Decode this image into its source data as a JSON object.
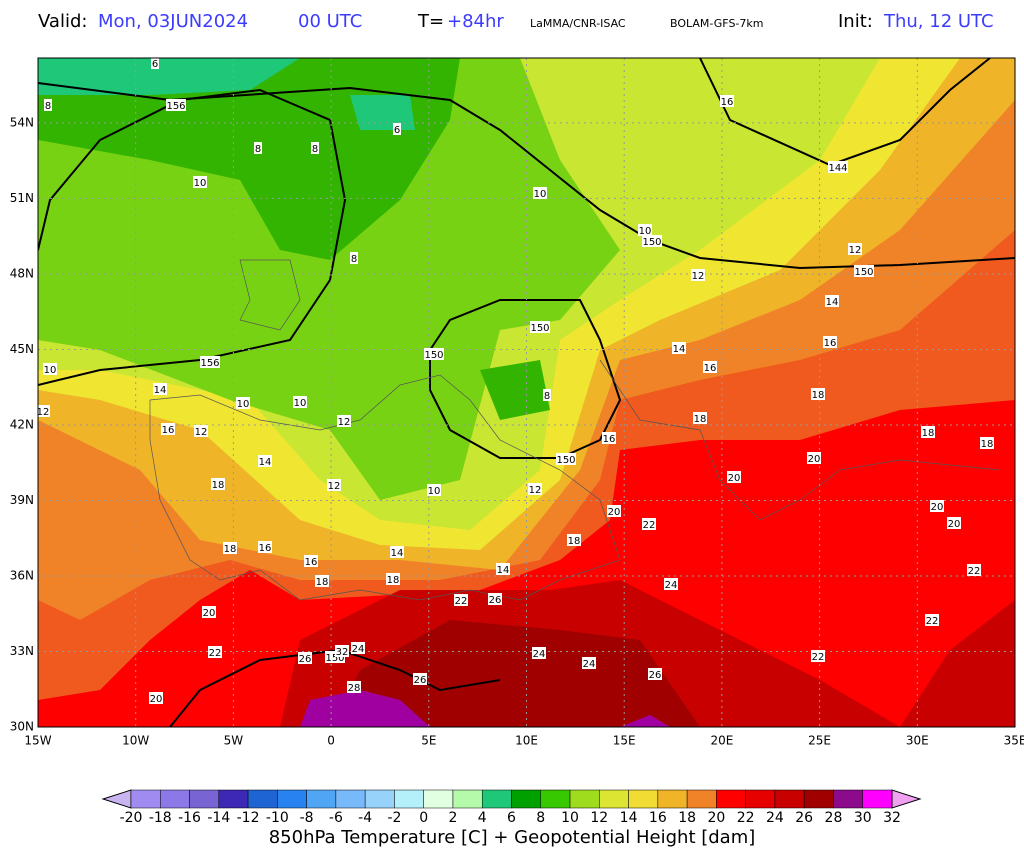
{
  "header": {
    "valid_label": "Valid:",
    "valid_date": "Mon, 03JUN2024",
    "valid_hour": "00 UTC",
    "step_label": "T=",
    "step_value": "+84hr",
    "source": "LaMMA/CNR-ISAC",
    "model": "BOLAM-GFS-7km",
    "init_label": "Init:",
    "init_value": "Thu, 12 UTC"
  },
  "map": {
    "lon_ticks": [
      {
        "value": -15,
        "label": "15W"
      },
      {
        "value": -10,
        "label": "10W"
      },
      {
        "value": -5,
        "label": "5W"
      },
      0,
      {
        "value": 5,
        "label": "5E"
      },
      {
        "value": 10,
        "label": "10E"
      },
      {
        "value": 15,
        "label": "15E"
      },
      {
        "value": 20,
        "label": "20E"
      },
      {
        "value": 25,
        "label": "25E"
      },
      {
        "value": 30,
        "label": "30E"
      },
      {
        "value": 35,
        "label": "35E"
      }
    ],
    "lat_ticks": [
      {
        "value": 30,
        "label": "30N"
      },
      {
        "value": 33,
        "label": "33N"
      },
      {
        "value": 36,
        "label": "36N"
      },
      {
        "value": 39,
        "label": "39N"
      },
      {
        "value": 42,
        "label": "42N"
      },
      {
        "value": 45,
        "label": "45N"
      },
      {
        "value": 48,
        "label": "48N"
      },
      {
        "value": 51,
        "label": "51N"
      },
      {
        "value": 54,
        "label": "54N"
      }
    ],
    "contour_labels": [
      "6",
      "8",
      "156",
      "8",
      "8",
      "6",
      "16",
      "10",
      "10",
      "144",
      "8",
      "10",
      "150",
      "12",
      "150",
      "12",
      "14",
      "150",
      "16",
      "150",
      "14",
      "16",
      "10",
      "156",
      "14",
      "8",
      "10",
      "10",
      "18",
      "12",
      "12",
      "16",
      "12",
      "18",
      "18",
      "18",
      "16",
      "14",
      "150",
      "20",
      "18",
      "12",
      "10",
      "12",
      "20",
      "20",
      "20",
      "22",
      "20",
      "18",
      "16",
      "14",
      "18",
      "16",
      "14",
      "22",
      "18",
      "18",
      "24",
      "22",
      "26",
      "20",
      "22",
      "22",
      "26",
      "150",
      "32",
      "24",
      "24",
      "24",
      "22",
      "26",
      "26",
      "28",
      "20"
    ]
  },
  "colorbar": {
    "labels": [
      -20,
      -18,
      -16,
      -14,
      -12,
      -10,
      -8,
      -6,
      -4,
      -2,
      0,
      2,
      4,
      6,
      8,
      10,
      12,
      14,
      16,
      18,
      20,
      22,
      24,
      26,
      28,
      30,
      32
    ],
    "colors": [
      "#c8b4f0",
      "#a08cf0",
      "#8c78e6",
      "#7864d2",
      "#3c28b4",
      "#1e64d2",
      "#2882f0",
      "#50a5f5",
      "#78b9fa",
      "#96d2fa",
      "#b4f0fa",
      "#e1ffe1",
      "#b4faaa",
      "#1ec878",
      "#00a000",
      "#37c800",
      "#a0dc1e",
      "#dce632",
      "#f0dc32",
      "#f0b428",
      "#f08228",
      "#ff0000",
      "#e60000",
      "#c80000",
      "#a00000",
      "#8c0a8c",
      "#ff00ff",
      "#f0a0f0"
    ],
    "title": "850hPa Temperature [C] + Geopotential Height [dam]"
  }
}
